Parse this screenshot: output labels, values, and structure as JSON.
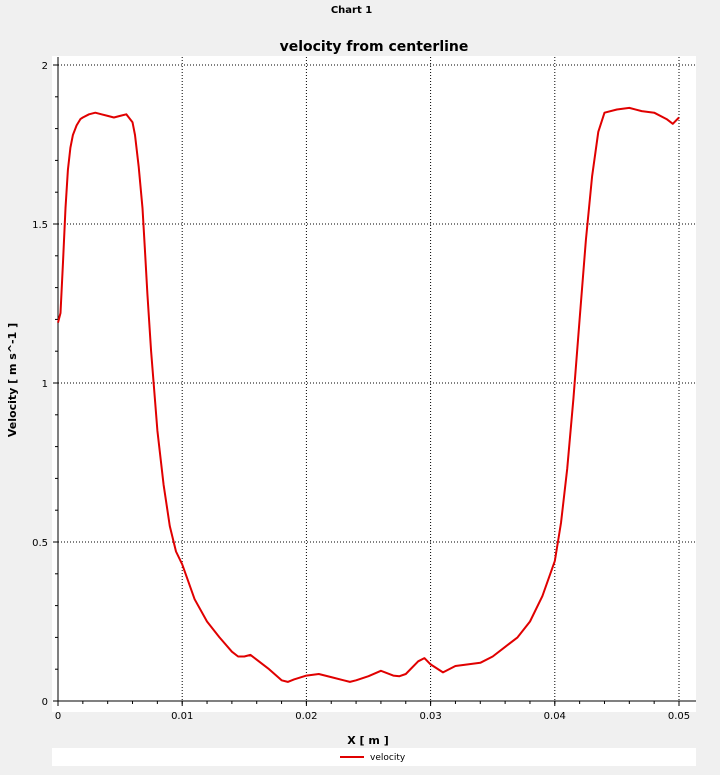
{
  "window": {
    "title": "Chart 1"
  },
  "colors": {
    "series": "#e00000",
    "plot_bg": "#ffffff",
    "page_bg": "#f0f0f0",
    "grid": "#000000"
  },
  "chart_data": {
    "type": "line",
    "title": "velocity from centerline",
    "xlabel": "X [ m ]",
    "ylabel": "Velocity [ m s^-1 ]",
    "xlim": [
      0,
      0.05
    ],
    "ylim": [
      0,
      2
    ],
    "xticks": [
      0,
      0.01,
      0.02,
      0.03,
      0.04,
      0.05
    ],
    "xtick_labels": [
      "0",
      "0.01",
      "0.02",
      "0.03",
      "0.04",
      "0.05"
    ],
    "yticks": [
      0,
      0.5,
      1,
      1.5,
      2
    ],
    "ytick_labels": [
      "0",
      "0.5",
      "1",
      "1.5",
      "2"
    ],
    "grid": true,
    "legend": "bottom-center",
    "series": [
      {
        "name": "velocity",
        "x": [
          0.0,
          0.0002,
          0.0004,
          0.0006,
          0.0008,
          0.001,
          0.0012,
          0.0015,
          0.0018,
          0.002,
          0.0025,
          0.003,
          0.0035,
          0.004,
          0.0045,
          0.005,
          0.0055,
          0.006,
          0.0062,
          0.0065,
          0.0068,
          0.007,
          0.0072,
          0.0075,
          0.0078,
          0.008,
          0.0085,
          0.009,
          0.0095,
          0.01,
          0.011,
          0.012,
          0.013,
          0.014,
          0.0145,
          0.015,
          0.0155,
          0.016,
          0.017,
          0.018,
          0.0185,
          0.019,
          0.02,
          0.021,
          0.022,
          0.023,
          0.0235,
          0.024,
          0.025,
          0.026,
          0.027,
          0.0275,
          0.028,
          0.029,
          0.0295,
          0.03,
          0.031,
          0.032,
          0.033,
          0.034,
          0.035,
          0.036,
          0.037,
          0.038,
          0.039,
          0.04,
          0.0405,
          0.041,
          0.0415,
          0.042,
          0.0425,
          0.043,
          0.0435,
          0.044,
          0.045,
          0.046,
          0.047,
          0.048,
          0.049,
          0.0495,
          0.05
        ],
        "values": [
          1.19,
          1.22,
          1.38,
          1.55,
          1.67,
          1.74,
          1.78,
          1.81,
          1.83,
          1.835,
          1.845,
          1.85,
          1.845,
          1.84,
          1.835,
          1.84,
          1.845,
          1.82,
          1.78,
          1.68,
          1.55,
          1.42,
          1.28,
          1.1,
          0.95,
          0.85,
          0.68,
          0.55,
          0.47,
          0.43,
          0.32,
          0.25,
          0.2,
          0.155,
          0.14,
          0.14,
          0.145,
          0.13,
          0.1,
          0.065,
          0.06,
          0.068,
          0.08,
          0.085,
          0.075,
          0.065,
          0.06,
          0.065,
          0.078,
          0.095,
          0.08,
          0.078,
          0.085,
          0.125,
          0.135,
          0.115,
          0.09,
          0.11,
          0.115,
          0.12,
          0.14,
          0.17,
          0.2,
          0.25,
          0.33,
          0.44,
          0.56,
          0.73,
          0.95,
          1.2,
          1.45,
          1.65,
          1.79,
          1.85,
          1.86,
          1.865,
          1.855,
          1.85,
          1.83,
          1.815,
          1.835
        ]
      }
    ]
  }
}
